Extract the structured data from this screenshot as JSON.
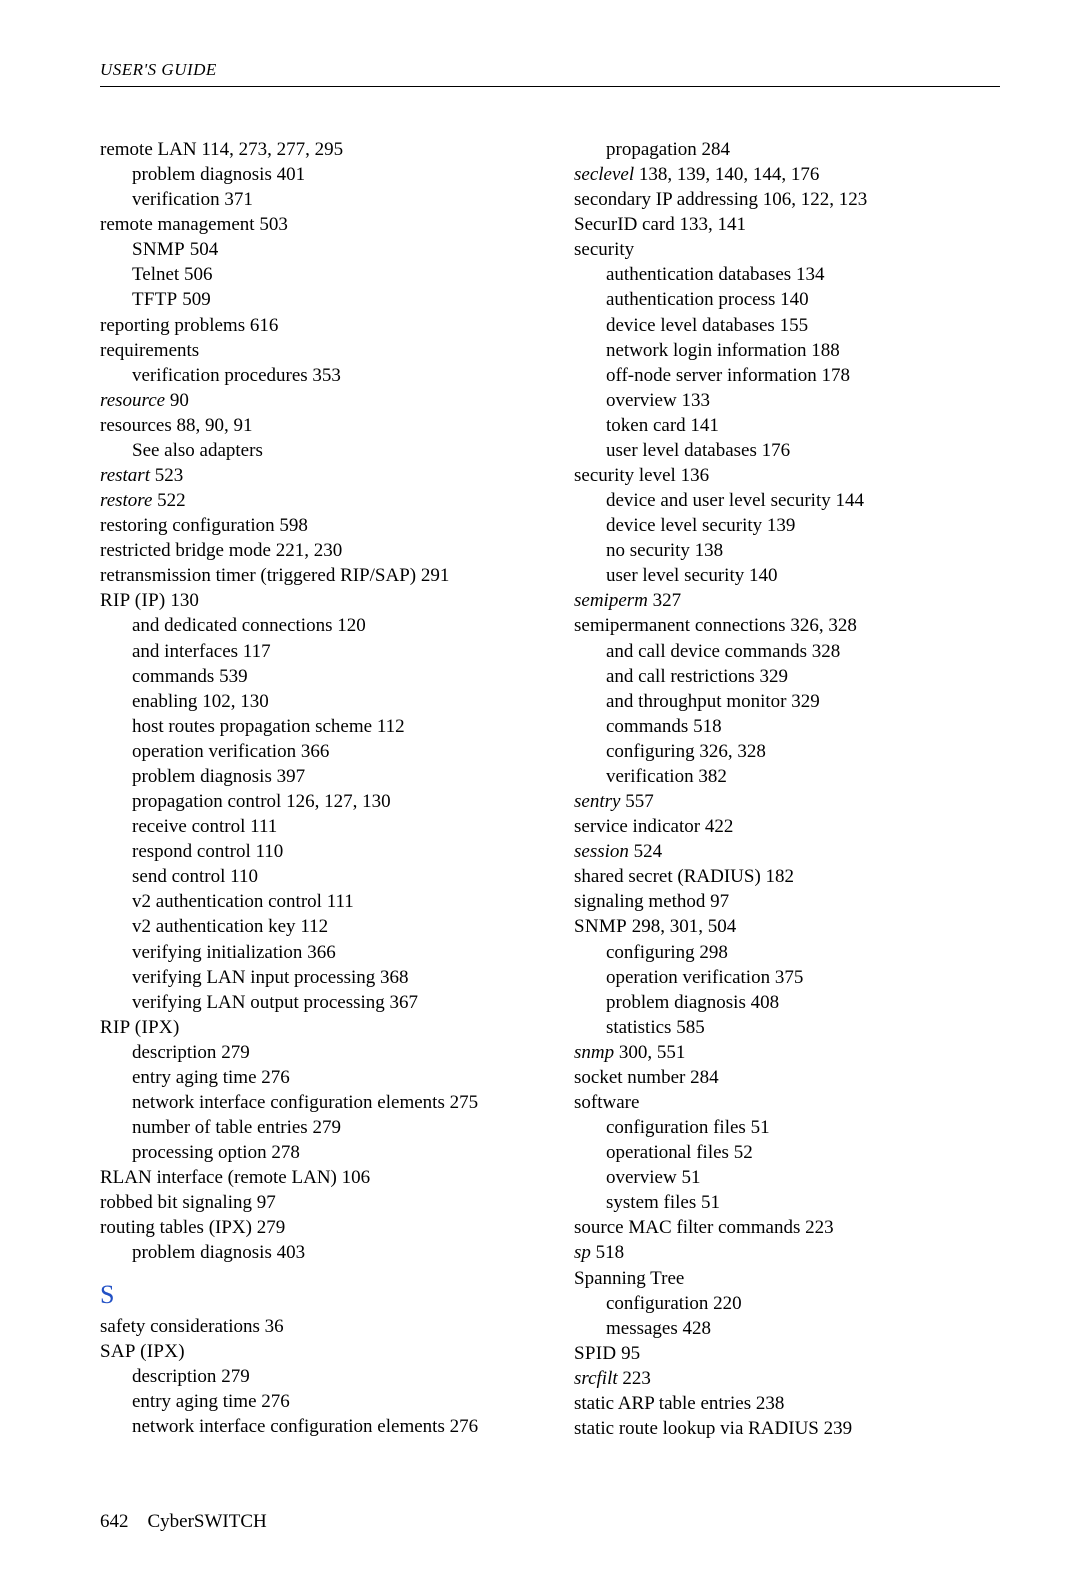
{
  "header": "USER'S GUIDE",
  "footer": {
    "page": "642",
    "product": "CyberSWITCH"
  },
  "left": [
    {
      "indent": 0,
      "spans": [
        {
          "t": "remote LAN "
        },
        {
          "t": "114, 273, 277, 295"
        }
      ]
    },
    {
      "indent": 1,
      "spans": [
        {
          "t": "problem diagnosis "
        },
        {
          "t": "401"
        }
      ]
    },
    {
      "indent": 1,
      "spans": [
        {
          "t": "verification "
        },
        {
          "t": "371"
        }
      ]
    },
    {
      "indent": 0,
      "spans": [
        {
          "t": "remote management "
        },
        {
          "t": "503"
        }
      ]
    },
    {
      "indent": 1,
      "spans": [
        {
          "t": "SNMP",
          "sc": true
        },
        {
          "t": " 504"
        }
      ]
    },
    {
      "indent": 1,
      "spans": [
        {
          "t": "Telnet "
        },
        {
          "t": "506"
        }
      ]
    },
    {
      "indent": 1,
      "spans": [
        {
          "t": "TFTP",
          "sc": true
        },
        {
          "t": " 509"
        }
      ]
    },
    {
      "indent": 0,
      "spans": [
        {
          "t": "reporting problems "
        },
        {
          "t": "616"
        }
      ]
    },
    {
      "indent": 0,
      "spans": [
        {
          "t": "requirements"
        }
      ]
    },
    {
      "indent": 1,
      "spans": [
        {
          "t": "verification procedures "
        },
        {
          "t": "353"
        }
      ]
    },
    {
      "indent": 0,
      "spans": [
        {
          "t": "resource",
          "italic": true
        },
        {
          "t": " 90"
        }
      ]
    },
    {
      "indent": 0,
      "spans": [
        {
          "t": "resources "
        },
        {
          "t": "88, 90, 91"
        }
      ]
    },
    {
      "indent": 1,
      "spans": [
        {
          "t": "See also adapters"
        }
      ]
    },
    {
      "indent": 0,
      "spans": [
        {
          "t": "restart",
          "italic": true
        },
        {
          "t": " 523"
        }
      ]
    },
    {
      "indent": 0,
      "spans": [
        {
          "t": "restore",
          "italic": true
        },
        {
          "t": " 522"
        }
      ]
    },
    {
      "indent": 0,
      "spans": [
        {
          "t": "restoring configuration "
        },
        {
          "t": "598"
        }
      ]
    },
    {
      "indent": 0,
      "spans": [
        {
          "t": "restricted bridge mode "
        },
        {
          "t": "221, 230"
        }
      ]
    },
    {
      "indent": 0,
      "spans": [
        {
          "t": "retransmission timer (triggered RIP/SAP) "
        },
        {
          "t": "291"
        }
      ]
    },
    {
      "indent": 0,
      "spans": [
        {
          "t": "RIP (IP)",
          "sc": true
        },
        {
          "t": " 130"
        }
      ]
    },
    {
      "indent": 1,
      "spans": [
        {
          "t": "and dedicated connections "
        },
        {
          "t": "120"
        }
      ]
    },
    {
      "indent": 1,
      "spans": [
        {
          "t": "and interfaces "
        },
        {
          "t": "117"
        }
      ]
    },
    {
      "indent": 1,
      "spans": [
        {
          "t": "commands "
        },
        {
          "t": "539"
        }
      ]
    },
    {
      "indent": 1,
      "spans": [
        {
          "t": "enabling "
        },
        {
          "t": "102, 130"
        }
      ]
    },
    {
      "indent": 1,
      "spans": [
        {
          "t": "host routes propagation scheme "
        },
        {
          "t": "112"
        }
      ]
    },
    {
      "indent": 1,
      "spans": [
        {
          "t": "operation verification "
        },
        {
          "t": "366"
        }
      ]
    },
    {
      "indent": 1,
      "spans": [
        {
          "t": "problem diagnosis "
        },
        {
          "t": "397"
        }
      ]
    },
    {
      "indent": 1,
      "spans": [
        {
          "t": "propagation control "
        },
        {
          "t": "126, 127, 130"
        }
      ]
    },
    {
      "indent": 1,
      "spans": [
        {
          "t": "receive control "
        },
        {
          "t": "111"
        }
      ]
    },
    {
      "indent": 1,
      "spans": [
        {
          "t": "respond control "
        },
        {
          "t": "110"
        }
      ]
    },
    {
      "indent": 1,
      "spans": [
        {
          "t": "send control "
        },
        {
          "t": "110"
        }
      ]
    },
    {
      "indent": 1,
      "spans": [
        {
          "t": "v2 authentication control "
        },
        {
          "t": "111"
        }
      ]
    },
    {
      "indent": 1,
      "spans": [
        {
          "t": "v2 authentication key "
        },
        {
          "t": "112"
        }
      ]
    },
    {
      "indent": 1,
      "spans": [
        {
          "t": "verifying initialization "
        },
        {
          "t": "366"
        }
      ]
    },
    {
      "indent": 1,
      "spans": [
        {
          "t": "verifying LAN input processing "
        },
        {
          "t": "368"
        }
      ]
    },
    {
      "indent": 1,
      "spans": [
        {
          "t": "verifying LAN output processing "
        },
        {
          "t": "367"
        }
      ]
    },
    {
      "indent": 0,
      "spans": [
        {
          "t": "RIP (IPX)",
          "sc": true
        }
      ]
    },
    {
      "indent": 1,
      "spans": [
        {
          "t": "description "
        },
        {
          "t": "279"
        }
      ]
    },
    {
      "indent": 1,
      "spans": [
        {
          "t": "entry aging time "
        },
        {
          "t": "276"
        }
      ]
    },
    {
      "indent": 1,
      "spans": [
        {
          "t": "network interface configuration elements "
        },
        {
          "t": "275"
        }
      ]
    },
    {
      "indent": 1,
      "spans": [
        {
          "t": "number of table entries "
        },
        {
          "t": "279"
        }
      ]
    },
    {
      "indent": 1,
      "spans": [
        {
          "t": "processing option "
        },
        {
          "t": "278"
        }
      ]
    },
    {
      "indent": 0,
      "spans": [
        {
          "t": "RLAN interface (remote LAN) "
        },
        {
          "t": "106"
        }
      ]
    },
    {
      "indent": 0,
      "spans": [
        {
          "t": "robbed bit signaling "
        },
        {
          "t": "97"
        }
      ]
    },
    {
      "indent": 0,
      "spans": [
        {
          "t": "routing tables (IPX) "
        },
        {
          "t": "279"
        }
      ]
    },
    {
      "indent": 1,
      "spans": [
        {
          "t": "problem diagnosis "
        },
        {
          "t": "403"
        }
      ]
    },
    {
      "section": "S"
    },
    {
      "indent": 0,
      "spans": [
        {
          "t": "safety considerations "
        },
        {
          "t": "36"
        }
      ]
    },
    {
      "indent": 0,
      "spans": [
        {
          "t": "SAP (IPX)",
          "sc": true
        }
      ]
    },
    {
      "indent": 1,
      "spans": [
        {
          "t": "description "
        },
        {
          "t": "279"
        }
      ]
    },
    {
      "indent": 1,
      "spans": [
        {
          "t": "entry aging time "
        },
        {
          "t": "276"
        }
      ]
    },
    {
      "indent": 1,
      "spans": [
        {
          "t": "network interface configuration elements "
        },
        {
          "t": "276"
        }
      ]
    }
  ],
  "right": [
    {
      "indent": 1,
      "spans": [
        {
          "t": "propagation "
        },
        {
          "t": "284"
        }
      ]
    },
    {
      "indent": 0,
      "spans": [
        {
          "t": "seclevel",
          "italic": true
        },
        {
          "t": " 138, 139, 140, 144, 176"
        }
      ]
    },
    {
      "indent": 0,
      "spans": [
        {
          "t": "secondary IP addressing "
        },
        {
          "t": "106, 122, 123"
        }
      ]
    },
    {
      "indent": 0,
      "spans": [
        {
          "t": "SecurID card "
        },
        {
          "t": "133, 141"
        }
      ]
    },
    {
      "indent": 0,
      "spans": [
        {
          "t": "security"
        }
      ]
    },
    {
      "indent": 1,
      "spans": [
        {
          "t": "authentication databases "
        },
        {
          "t": "134"
        }
      ]
    },
    {
      "indent": 1,
      "spans": [
        {
          "t": "authentication process "
        },
        {
          "t": "140"
        }
      ]
    },
    {
      "indent": 1,
      "spans": [
        {
          "t": "device level databases "
        },
        {
          "t": "155"
        }
      ]
    },
    {
      "indent": 1,
      "spans": [
        {
          "t": "network login information "
        },
        {
          "t": "188"
        }
      ]
    },
    {
      "indent": 1,
      "spans": [
        {
          "t": "off-node server information "
        },
        {
          "t": "178"
        }
      ]
    },
    {
      "indent": 1,
      "spans": [
        {
          "t": "overview "
        },
        {
          "t": "133"
        }
      ]
    },
    {
      "indent": 1,
      "spans": [
        {
          "t": "token card "
        },
        {
          "t": "141"
        }
      ]
    },
    {
      "indent": 1,
      "spans": [
        {
          "t": "user level databases "
        },
        {
          "t": "176"
        }
      ]
    },
    {
      "indent": 0,
      "spans": [
        {
          "t": "security level "
        },
        {
          "t": "136"
        }
      ]
    },
    {
      "indent": 1,
      "spans": [
        {
          "t": "device and user level security "
        },
        {
          "t": "144"
        }
      ]
    },
    {
      "indent": 1,
      "spans": [
        {
          "t": "device level security "
        },
        {
          "t": "139"
        }
      ]
    },
    {
      "indent": 1,
      "spans": [
        {
          "t": "no security "
        },
        {
          "t": "138"
        }
      ]
    },
    {
      "indent": 1,
      "spans": [
        {
          "t": "user level security "
        },
        {
          "t": "140"
        }
      ]
    },
    {
      "indent": 0,
      "spans": [
        {
          "t": "semiperm",
          "italic": true
        },
        {
          "t": " 327"
        }
      ]
    },
    {
      "indent": 0,
      "spans": [
        {
          "t": "semipermanent connections "
        },
        {
          "t": "326, 328"
        }
      ]
    },
    {
      "indent": 1,
      "spans": [
        {
          "t": "and call device commands "
        },
        {
          "t": "328"
        }
      ]
    },
    {
      "indent": 1,
      "spans": [
        {
          "t": "and call restrictions "
        },
        {
          "t": "329"
        }
      ]
    },
    {
      "indent": 1,
      "spans": [
        {
          "t": "and throughput monitor "
        },
        {
          "t": "329"
        }
      ]
    },
    {
      "indent": 1,
      "spans": [
        {
          "t": "commands "
        },
        {
          "t": "518"
        }
      ]
    },
    {
      "indent": 1,
      "spans": [
        {
          "t": "configuring "
        },
        {
          "t": "326, 328"
        }
      ]
    },
    {
      "indent": 1,
      "spans": [
        {
          "t": "verification "
        },
        {
          "t": "382"
        }
      ]
    },
    {
      "indent": 0,
      "spans": [
        {
          "t": "sentry",
          "italic": true
        },
        {
          "t": " 557"
        }
      ]
    },
    {
      "indent": 0,
      "spans": [
        {
          "t": "service indicator "
        },
        {
          "t": "422"
        }
      ]
    },
    {
      "indent": 0,
      "spans": [
        {
          "t": "session",
          "italic": true
        },
        {
          "t": " 524"
        }
      ]
    },
    {
      "indent": 0,
      "spans": [
        {
          "t": "shared secret (RADIUS) "
        },
        {
          "t": "182"
        }
      ]
    },
    {
      "indent": 0,
      "spans": [
        {
          "t": "signaling method "
        },
        {
          "t": "97"
        }
      ]
    },
    {
      "indent": 0,
      "spans": [
        {
          "t": "SNMP",
          "sc": true
        },
        {
          "t": " 298, 301, 504"
        }
      ]
    },
    {
      "indent": 1,
      "spans": [
        {
          "t": "configuring "
        },
        {
          "t": "298"
        }
      ]
    },
    {
      "indent": 1,
      "spans": [
        {
          "t": "operation verification "
        },
        {
          "t": "375"
        }
      ]
    },
    {
      "indent": 1,
      "spans": [
        {
          "t": "problem diagnosis "
        },
        {
          "t": "408"
        }
      ]
    },
    {
      "indent": 1,
      "spans": [
        {
          "t": "statistics "
        },
        {
          "t": "585"
        }
      ]
    },
    {
      "indent": 0,
      "spans": [
        {
          "t": "snmp",
          "italic": true
        },
        {
          "t": " 300, 551"
        }
      ]
    },
    {
      "indent": 0,
      "spans": [
        {
          "t": "socket number "
        },
        {
          "t": "284"
        }
      ]
    },
    {
      "indent": 0,
      "spans": [
        {
          "t": "software"
        }
      ]
    },
    {
      "indent": 1,
      "spans": [
        {
          "t": "configuration files "
        },
        {
          "t": "51"
        }
      ]
    },
    {
      "indent": 1,
      "spans": [
        {
          "t": "operational files "
        },
        {
          "t": "52"
        }
      ]
    },
    {
      "indent": 1,
      "spans": [
        {
          "t": "overview "
        },
        {
          "t": "51"
        }
      ]
    },
    {
      "indent": 1,
      "spans": [
        {
          "t": "system files "
        },
        {
          "t": "51"
        }
      ]
    },
    {
      "indent": 0,
      "spans": [
        {
          "t": "source MAC filter commands "
        },
        {
          "t": "223"
        }
      ]
    },
    {
      "indent": 0,
      "spans": [
        {
          "t": "sp",
          "italic": true
        },
        {
          "t": " 518"
        }
      ]
    },
    {
      "indent": 0,
      "spans": [
        {
          "t": "Spanning Tree"
        }
      ]
    },
    {
      "indent": 1,
      "spans": [
        {
          "t": "configuration "
        },
        {
          "t": "220"
        }
      ]
    },
    {
      "indent": 1,
      "spans": [
        {
          "t": "messages "
        },
        {
          "t": "428"
        }
      ]
    },
    {
      "indent": 0,
      "spans": [
        {
          "t": "SPID",
          "sc": true
        },
        {
          "t": " 95"
        }
      ]
    },
    {
      "indent": 0,
      "spans": [
        {
          "t": "srcfilt",
          "italic": true
        },
        {
          "t": " 223"
        }
      ]
    },
    {
      "indent": 0,
      "spans": [
        {
          "t": "static ARP table entries "
        },
        {
          "t": "238"
        }
      ]
    },
    {
      "indent": 0,
      "spans": [
        {
          "t": "static route lookup via RADIUS "
        },
        {
          "t": "239"
        }
      ]
    }
  ]
}
